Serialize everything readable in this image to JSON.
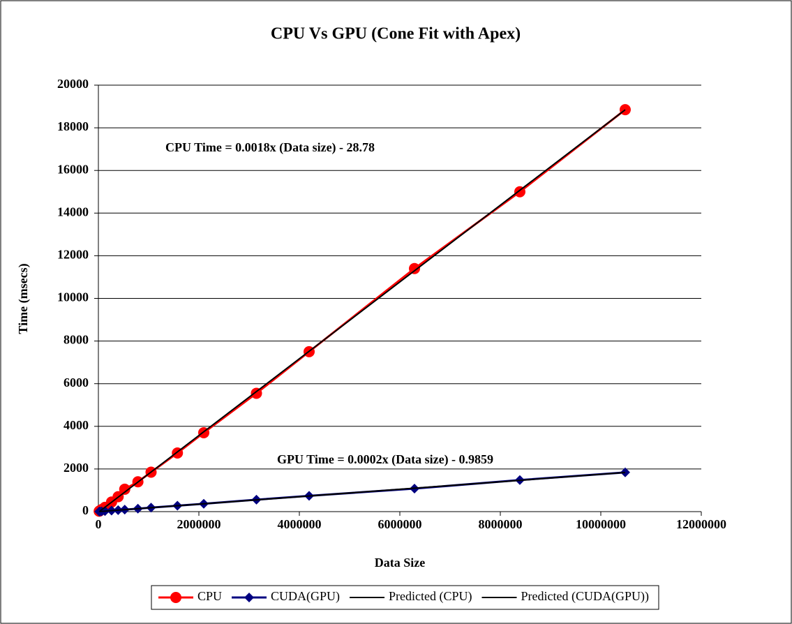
{
  "chart_data": {
    "type": "scatter",
    "title": "CPU Vs GPU (Cone Fit with Apex)",
    "x_label": "Data Size",
    "y_label": "Time (msecs)",
    "annotations": [
      "CPU Time = 0.0018x (Data size) - 28.78",
      "GPU Time = 0.0002x (Data size) - 0.9859"
    ],
    "xlim": [
      0,
      12000000
    ],
    "ylim": [
      0,
      20000
    ],
    "xticks": [
      0,
      2000000,
      4000000,
      6000000,
      8000000,
      10000000,
      12000000
    ],
    "yticks": [
      0,
      2000,
      4000,
      6000,
      8000,
      10000,
      12000,
      14000,
      16000,
      18000,
      20000
    ],
    "grid": true,
    "legend": "bottom",
    "series": [
      {
        "name": "CPU",
        "color": "#ff0000",
        "marker": "circle",
        "line": true,
        "x": [
          16384,
          32768,
          65536,
          131072,
          262144,
          393216,
          524288,
          786432,
          1048576,
          1572864,
          2097152,
          3145728,
          4194304,
          6291456,
          8388608,
          10485760
        ],
        "values": [
          20,
          50,
          100,
          200,
          450,
          700,
          1050,
          1400,
          1850,
          2750,
          3700,
          5550,
          7500,
          11400,
          15000,
          18850
        ]
      },
      {
        "name": "CUDA(GPU)",
        "color": "#000080",
        "marker": "diamond",
        "line": true,
        "x": [
          16384,
          32768,
          65536,
          131072,
          262144,
          393216,
          524288,
          786432,
          1048576,
          1572864,
          2097152,
          3145728,
          4194304,
          6291456,
          8388608,
          10485760
        ],
        "values": [
          3,
          6,
          12,
          24,
          50,
          70,
          95,
          140,
          190,
          280,
          370,
          560,
          740,
          1080,
          1480,
          1840
        ]
      },
      {
        "name": "Predicted (CPU)",
        "color": "#000000",
        "marker": "none",
        "line": true,
        "x": [
          16384,
          10485760
        ],
        "values": [
          0,
          18846
        ]
      },
      {
        "name": "Predicted (CUDA(GPU))",
        "color": "#000000",
        "marker": "none",
        "line": true,
        "x": [
          16384,
          10485760
        ],
        "values": [
          2,
          1835
        ]
      }
    ]
  }
}
